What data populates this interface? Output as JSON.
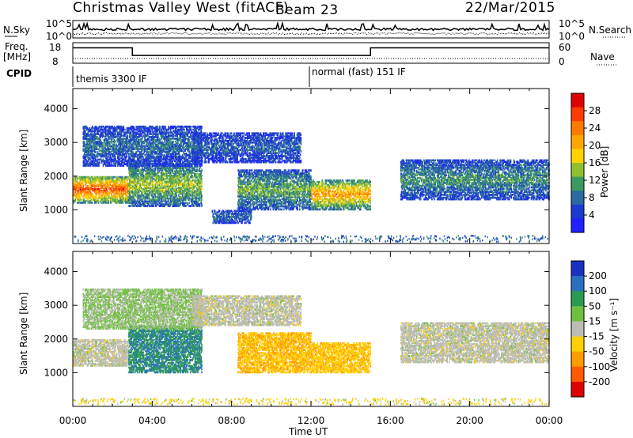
{
  "header": {
    "station": "Christmas Valley West (fitACF)",
    "beam": "Beam 23",
    "date": "22/Mar/2015"
  },
  "noise_panel": {
    "left_label": "N.Sky",
    "right_label": "N.Search",
    "left_ticks": [
      "10^5",
      "10^0"
    ],
    "right_ticks": [
      "10^5",
      "10^0"
    ]
  },
  "freq_panel": {
    "left_label": "Freq.",
    "left_unit": "[MHz]",
    "right_label": "Nave",
    "left_ticks": [
      "18",
      "8"
    ],
    "right_ticks": [
      "60",
      "0"
    ],
    "freq_steps": [
      {
        "start_h": 0,
        "end_h": 3.0,
        "level": 0.75
      },
      {
        "start_h": 3.0,
        "end_h": 15.0,
        "level": 0.38
      },
      {
        "start_h": 15.0,
        "end_h": 24.0,
        "level": 0.75
      }
    ]
  },
  "cpid": {
    "label": "CPID",
    "modes": [
      {
        "name": "themis 3300 IF",
        "start_h": 0
      },
      {
        "name": "normal (fast) 151 IF",
        "start_h": 12.0
      }
    ]
  },
  "axes": {
    "x_ticks": [
      "00:00",
      "04:00",
      "08:00",
      "12:00",
      "16:00",
      "20:00",
      "00:00"
    ],
    "x_label": "Time UT",
    "y_label": "Slant Range [km]",
    "y_ticks": [
      "4000",
      "3000",
      "2000",
      "1000"
    ],
    "y_range": [
      0,
      4600
    ],
    "x_range_h": [
      0,
      24
    ]
  },
  "power_colorbar": {
    "title": "Power [dB]",
    "ticks": [
      "28",
      "24",
      "20",
      "16",
      "12",
      "8",
      "4"
    ],
    "colors": [
      "#e00000",
      "#ff3c00",
      "#ff7a00",
      "#ffa600",
      "#ffd200",
      "#90c030",
      "#3a9a60",
      "#2a6aa0",
      "#1a3ad0",
      "#2020ff"
    ]
  },
  "velocity_colorbar": {
    "title": "Velocity [m s⁻¹]",
    "ticks": [
      "200",
      "100",
      "50",
      "15",
      "-15",
      "-50",
      "-100",
      "-200"
    ],
    "colors": [
      "#1a30c0",
      "#2a70c0",
      "#2a9a50",
      "#70c040",
      "#bcbcb4",
      "#ffd000",
      "#ff9a00",
      "#ff5a00",
      "#e00000"
    ]
  },
  "chart_data": {
    "type": "heatmap",
    "title": "Christmas Valley West (fitACF) Beam 23 22/Mar/2015",
    "xlabel": "Time UT",
    "ylabel": "Slant Range [km]",
    "xlim_hours": [
      0,
      24
    ],
    "ylim_km": [
      0,
      4600
    ],
    "panels": [
      {
        "name": "Power",
        "units": "dB",
        "colorbar_range": [
          0,
          30
        ],
        "regions": [
          {
            "t0": 0.0,
            "t1": 2.8,
            "r0": 1200,
            "r1": 2000,
            "value": 22
          },
          {
            "t0": 2.8,
            "t1": 6.5,
            "r0": 1100,
            "r1": 2400,
            "value": 12
          },
          {
            "t0": 0.5,
            "t1": 6.5,
            "r0": 2300,
            "r1": 3500,
            "value": 6
          },
          {
            "t0": 6.0,
            "t1": 11.5,
            "r0": 2400,
            "r1": 3300,
            "value": 5
          },
          {
            "t0": 7.0,
            "t1": 9.0,
            "r0": 600,
            "r1": 1000,
            "value": 6
          },
          {
            "t0": 8.3,
            "t1": 12.0,
            "r0": 1000,
            "r1": 2200,
            "value": 10
          },
          {
            "t0": 12.0,
            "t1": 15.0,
            "r0": 1000,
            "r1": 1900,
            "value": 18
          },
          {
            "t0": 16.5,
            "t1": 24.0,
            "r0": 1300,
            "r1": 2500,
            "value": 8
          }
        ]
      },
      {
        "name": "Velocity",
        "units": "m s-1",
        "colorbar_range": [
          -200,
          200
        ],
        "regions": [
          {
            "t0": 0.0,
            "t1": 2.8,
            "r0": 1200,
            "r1": 2000,
            "value": 0
          },
          {
            "t0": 2.8,
            "t1": 6.5,
            "r0": 1000,
            "r1": 2400,
            "value": 120
          },
          {
            "t0": 0.5,
            "t1": 6.5,
            "r0": 2300,
            "r1": 3500,
            "value": 30
          },
          {
            "t0": 6.0,
            "t1": 11.5,
            "r0": 2400,
            "r1": 3300,
            "value": 0
          },
          {
            "t0": 8.3,
            "t1": 12.0,
            "r0": 1000,
            "r1": 2200,
            "value": -70
          },
          {
            "t0": 12.0,
            "t1": 15.0,
            "r0": 1000,
            "r1": 1900,
            "value": -60
          },
          {
            "t0": 16.5,
            "t1": 24.0,
            "r0": 1300,
            "r1": 2500,
            "value": 0
          }
        ]
      }
    ]
  }
}
